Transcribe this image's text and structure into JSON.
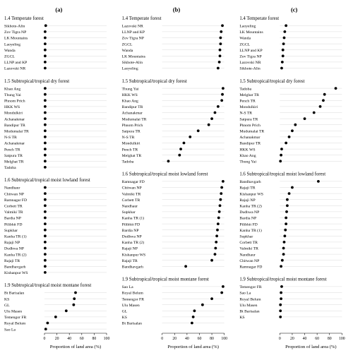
{
  "chart_data": [
    {
      "type": "scatter",
      "panel_label": "(a)",
      "xlabel": "Proportion of land area (%)",
      "xlim": [
        0,
        100
      ],
      "x_ticks": [
        0,
        20,
        40,
        60,
        80,
        100
      ],
      "groups": [
        {
          "title": "1.4 Temperate forest",
          "categories": [
            "Sikhote-Alin",
            "Zov Tigra NP",
            "LK Mountains",
            "Laoyeling",
            "Wanda",
            "ZGCL",
            "LLNP and KP",
            "Lazovski NR"
          ],
          "values": [
            2,
            1,
            1,
            1,
            1,
            1,
            1,
            1
          ]
        },
        {
          "title": "1.5 Subtropical/tropical dry forest",
          "categories": [
            "Khao Ang",
            "Thung Yai",
            "Phnom Prich",
            "HKK WS",
            "Mondulkiri",
            "Achanakmar",
            "Bandipur TR",
            "Mudumalai TR",
            "N-S TR",
            "Achanakmar",
            "Pench TR",
            "Satpura TR",
            "Melghat TR",
            "Tadoba"
          ],
          "values": [
            1,
            1,
            1,
            1,
            1,
            1,
            1,
            1,
            1,
            1,
            1,
            1,
            1,
            1
          ]
        },
        {
          "title": "1.6 Subtropical/tropical moist lowland forest",
          "categories": [
            "Nandhaur",
            "Chitwan NP",
            "Ramnagar FD",
            "Corbett TR",
            "Valmiki TR",
            "Bardia NP",
            "Pilibhit FD",
            "Supkhar",
            "Kanha TR (1)",
            "Rajaji NP",
            "Dudhwa NP",
            "Kanha TR (2)",
            "Rajaji TR",
            "Bandhavgarh",
            "Kishanpur WS"
          ],
          "values": [
            1,
            1,
            1,
            1,
            1,
            1,
            1,
            1,
            1,
            1,
            1,
            1,
            1,
            1,
            1
          ]
        },
        {
          "title": "1.9 Subtropical/tropical moist montane forest",
          "categories": [
            "Bt Barisalan",
            "KS",
            "GL",
            "Ulu Masen",
            "Temengor FR",
            "Royal Belum",
            "Sao La"
          ],
          "values": [
            50,
            48,
            47,
            35,
            18,
            5,
            2
          ]
        }
      ]
    },
    {
      "type": "scatter",
      "panel_label": "(b)",
      "xlabel": "Proportion of land area (%)",
      "xlim": [
        0,
        100
      ],
      "x_ticks": [
        0,
        20,
        40,
        60,
        80,
        100
      ],
      "groups": [
        {
          "title": "1.4 Temperate forest",
          "categories": [
            "Lazovski NR",
            "LLNP and KP",
            "Zov Tigra NP",
            "ZGCL",
            "Wanda",
            "LK Mountains",
            "Sikhote-Alin",
            "Laoyeling"
          ],
          "values": [
            97,
            95,
            94,
            94,
            93,
            93,
            92,
            90
          ]
        },
        {
          "title": "1.5 Subtropical/tropical dry forest",
          "categories": [
            "Thung Yai",
            "HKK WS",
            "Khao Ang",
            "Bandipur TR",
            "Achanakmar",
            "Mudumalai TR",
            "Phnom Prich",
            "Satpura TR",
            "N-S TR",
            "Mondulkiri",
            "Pench TR",
            "Melghat TR",
            "Tadoba"
          ],
          "values": [
            98,
            97,
            96,
            90,
            85,
            80,
            75,
            58,
            45,
            35,
            30,
            28,
            10
          ]
        },
        {
          "title": "1.6 Subtropical/tropical moist lowland forest",
          "categories": [
            "Ramnagar FD",
            "Chitwan NP",
            "Valmiki TR",
            "Corbett TR",
            "Nandhaur",
            "Supkhar",
            "Kanha TR (1)",
            "Pilibhit FD",
            "Bardia NP",
            "Dudhwa NP",
            "Kanha TR (2)",
            "Rajaji NP",
            "Kishanpur WS",
            "Rajaji TR",
            "Bandhavgarh"
          ],
          "values": [
            98,
            96,
            95,
            94,
            93,
            92,
            91,
            90,
            89,
            88,
            87,
            86,
            85,
            80,
            38
          ]
        },
        {
          "title": "1.9 Subtropical/tropical moist montane forest",
          "categories": [
            "Sao La",
            "Royal Belum",
            "Temengor FR",
            "Ulu Masen",
            "GL",
            "KS",
            "Bt Barisalan"
          ],
          "values": [
            98,
            96,
            80,
            65,
            52,
            50,
            48
          ]
        }
      ]
    },
    {
      "type": "scatter",
      "panel_label": "(c)",
      "xlabel": "Proportion of land area (%)",
      "xlim": [
        0,
        100
      ],
      "x_ticks": [
        0,
        20,
        40,
        60,
        80,
        100
      ],
      "groups": [
        {
          "title": "1.4 Temperate forest",
          "categories": [
            "Laoyeling",
            "LK Mountains",
            "Wanda",
            "ZGCL",
            "LLNP and KP",
            "Zov Tigra NP",
            "Lazovski NR",
            "Sikhote-Alin"
          ],
          "values": [
            10,
            8,
            7,
            6,
            5,
            5,
            4,
            3
          ]
        },
        {
          "title": "1.5 Subtropical/tropical dry forest",
          "categories": [
            "Tadoba",
            "Melghat TR",
            "Pench TR",
            "Mondulkiri",
            "N-S TR",
            "Satpura TR",
            "Phnom Prich",
            "Mudumalai TR",
            "Achanakmar",
            "Bandipur TR",
            "HKK WS",
            "Khao Ang",
            "Thung Yai"
          ],
          "values": [
            90,
            72,
            70,
            65,
            55,
            40,
            25,
            20,
            15,
            10,
            3,
            2,
            1
          ]
        },
        {
          "title": "1.6 Subtropical/tropical moist lowland forest",
          "categories": [
            "Bandhavgarh",
            "Rajaji TR",
            "Kishanpur WS",
            "Rajaji NP",
            "Kanha TR (2)",
            "Dudhwa NP",
            "Bardia NP",
            "Pilibhit FD",
            "Kanha TR (1)",
            "Supkhar",
            "Corbett TR",
            "Valmiki TR",
            "Nandhaur",
            "Chitwan NP",
            "Ramnagar FD"
          ],
          "values": [
            62,
            20,
            15,
            12,
            12,
            11,
            10,
            10,
            9,
            8,
            7,
            6,
            6,
            4,
            2
          ]
        },
        {
          "title": "1.9 Subtropical/tropical moist montane forest",
          "categories": [
            "Temengor FR",
            "Sao La",
            "Royal Belum",
            "Ulu Masen",
            "Bt Barisalan",
            "KS"
          ],
          "values": [
            3,
            2,
            2,
            1,
            1,
            1
          ]
        }
      ]
    }
  ]
}
